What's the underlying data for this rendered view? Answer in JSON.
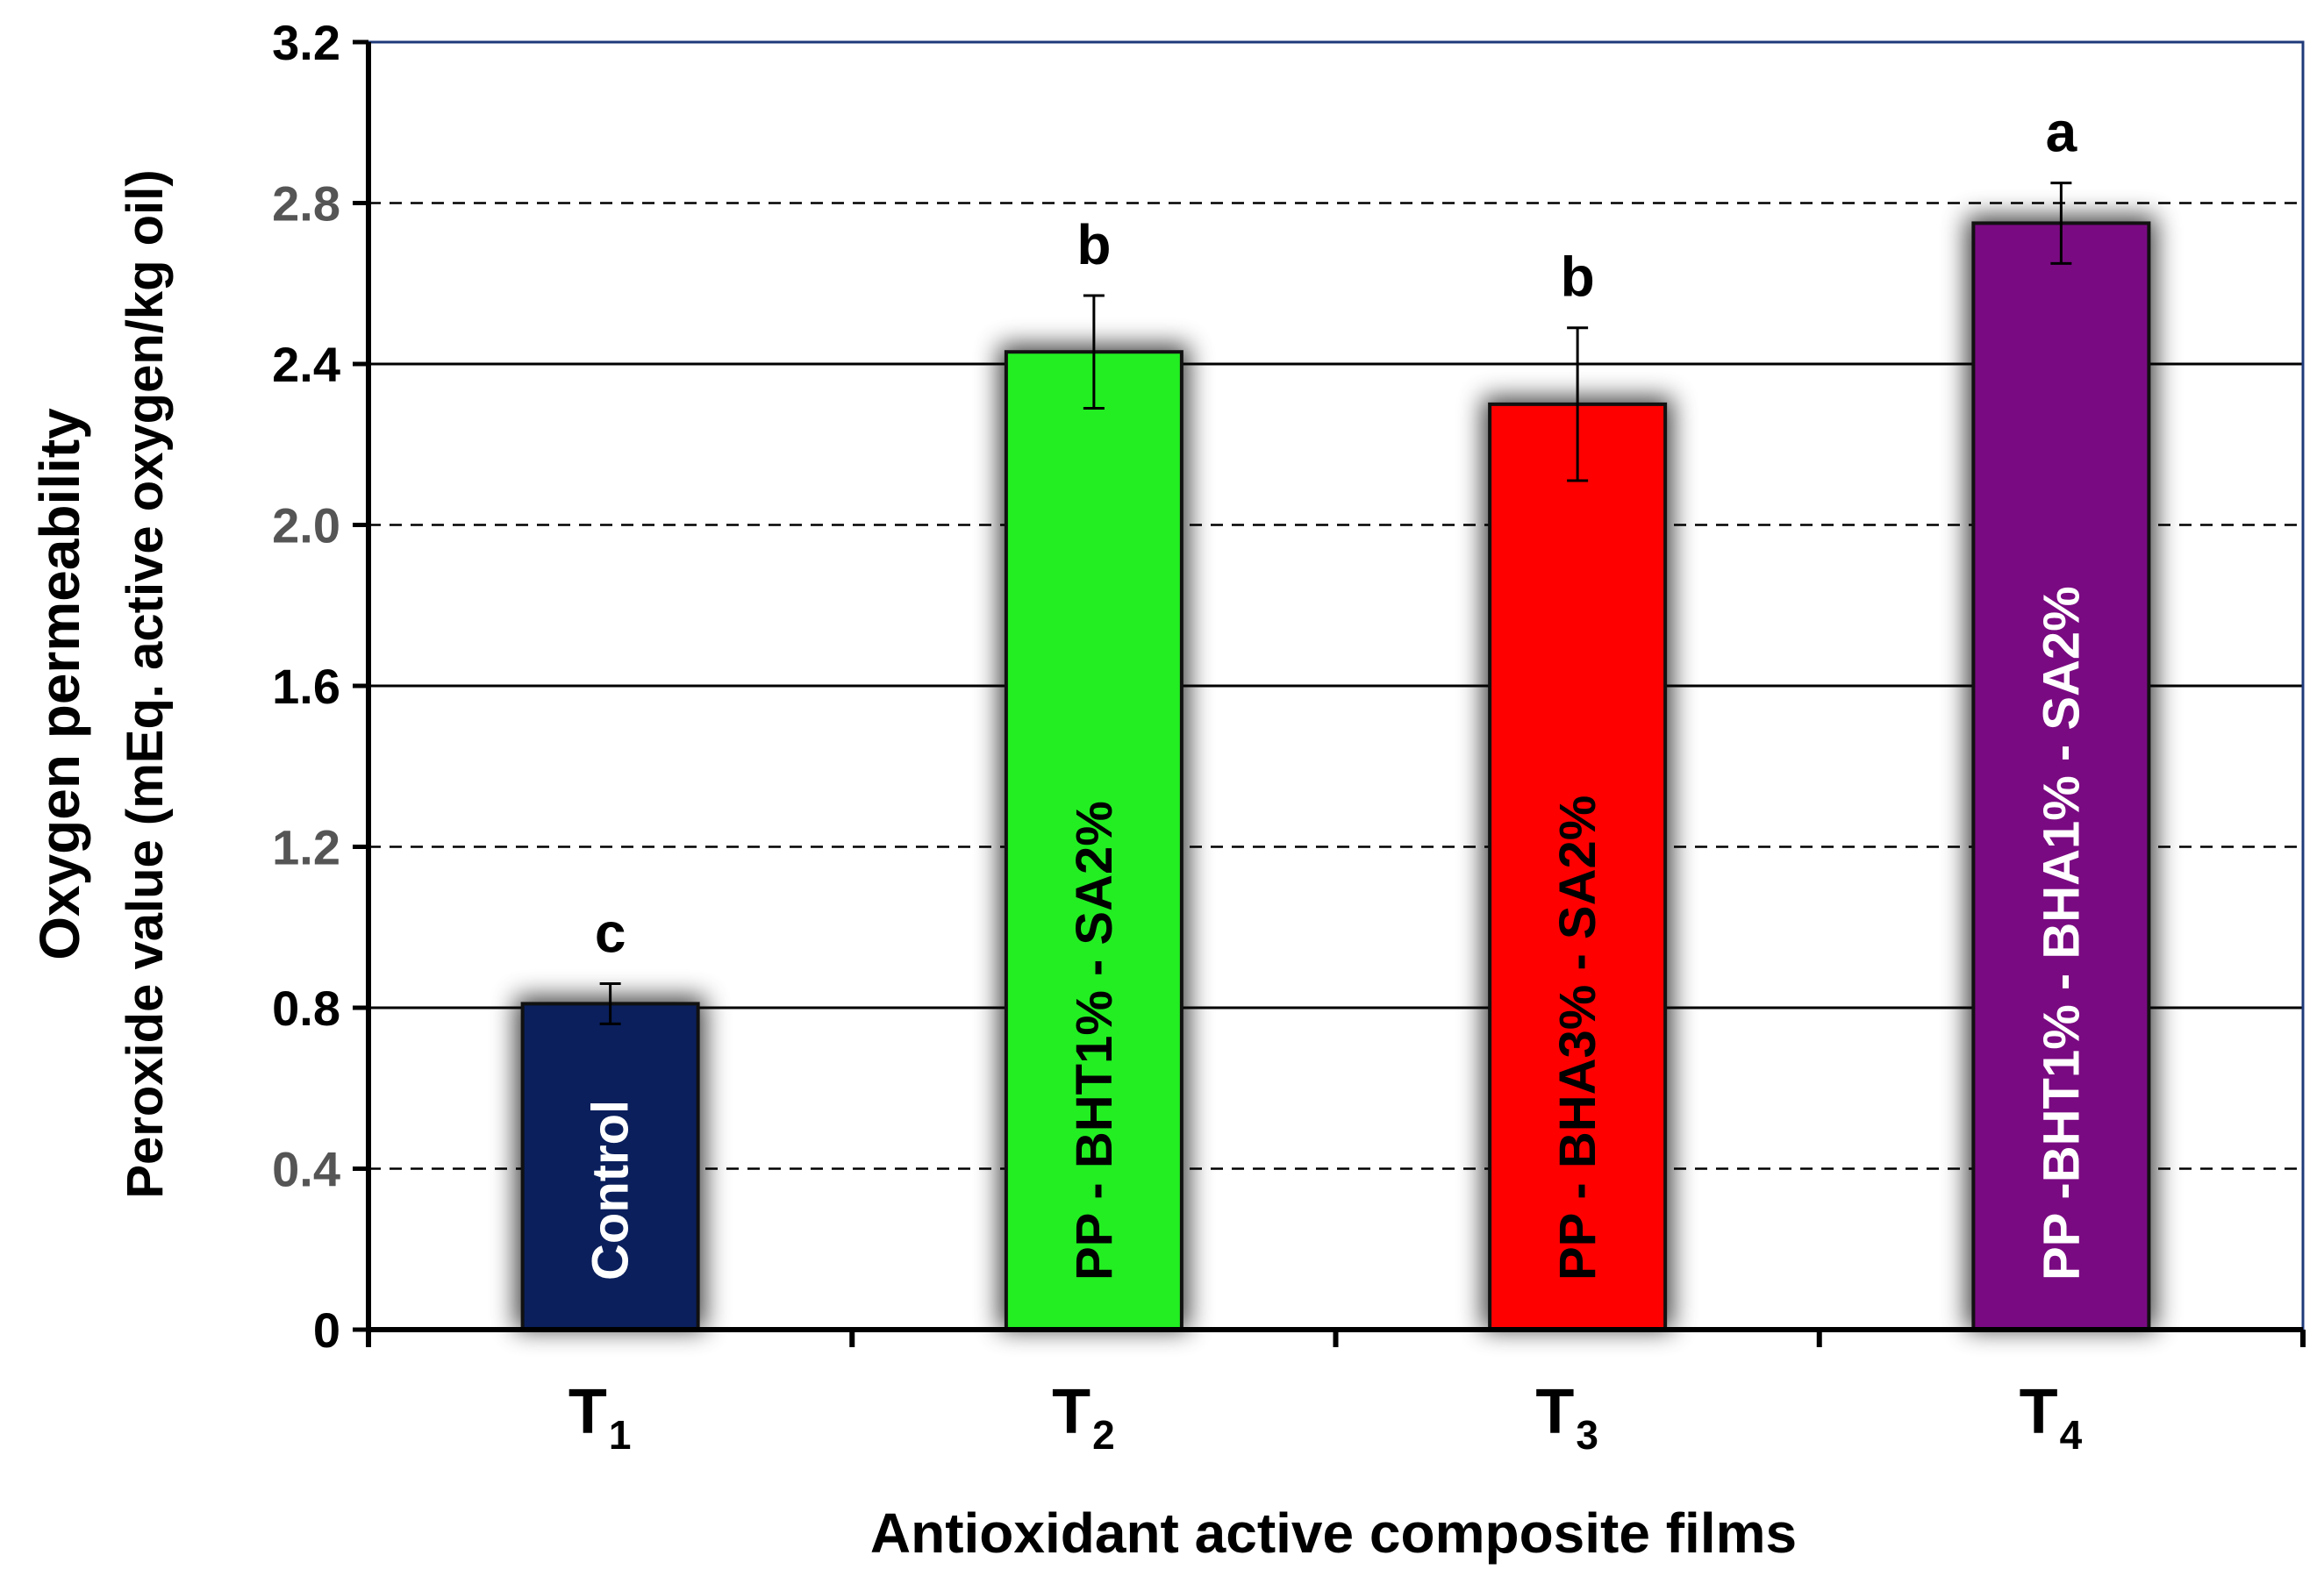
{
  "chart_data": {
    "type": "bar",
    "ylabel_line1": "Oxygen permeability",
    "ylabel_line2": "Peroxide value (mEq. active oxygen/kg oil)",
    "xlabel": "Antioxidant active composite films",
    "ylim": [
      0,
      3.2
    ],
    "yticks": [
      "0",
      "0.4",
      "0.8",
      "1.2",
      "1.6",
      "2.0",
      "2.4",
      "2.8",
      "3.2"
    ],
    "grid": "horizontal; solid at 0.8, 1.6, 2.4; dashed at 0.4, 1.2, 2.0, 2.8",
    "categories": [
      {
        "main": "T",
        "sub": "1"
      },
      {
        "main": "T",
        "sub": "2"
      },
      {
        "main": "T",
        "sub": "3"
      },
      {
        "main": "T",
        "sub": "4"
      }
    ],
    "bars": [
      {
        "value": 0.81,
        "error": 0.05,
        "letter": "c",
        "label": "Control",
        "color": "#0a1f5c",
        "label_color": "#ffffff"
      },
      {
        "value": 2.43,
        "error": 0.14,
        "letter": "b",
        "label": "PP - BHT1% - SA2%",
        "color": "#22ee22",
        "label_color": "#000000"
      },
      {
        "value": 2.3,
        "error": 0.19,
        "letter": "b",
        "label": "PP - BHA3% - SA2%",
        "color": "#ff0000",
        "label_color": "#000000"
      },
      {
        "value": 2.75,
        "error": 0.1,
        "letter": "a",
        "label": "PP -BHT1% - BHA1% - SA2%",
        "color": "#7a0a82",
        "label_color": "#ffffff"
      }
    ]
  }
}
